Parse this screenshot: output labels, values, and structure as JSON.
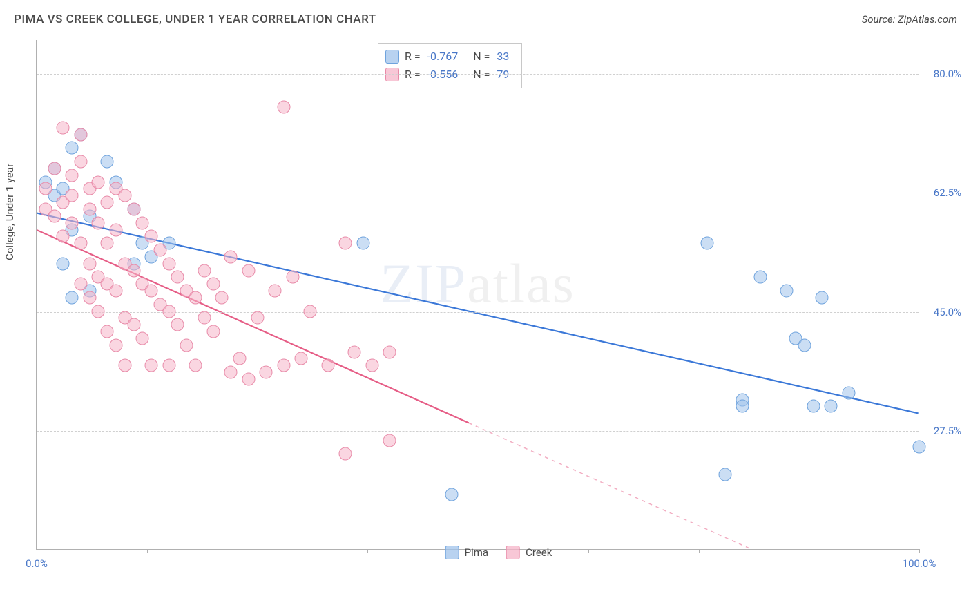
{
  "header": {
    "title": "PIMA VS CREEK COLLEGE, UNDER 1 YEAR CORRELATION CHART",
    "source": "Source: ZipAtlas.com"
  },
  "watermark": {
    "bold": "ZIP",
    "light": "atlas"
  },
  "chart": {
    "type": "scatter",
    "ylabel": "College, Under 1 year",
    "xlim": [
      0,
      100
    ],
    "ylim": [
      10,
      85
    ],
    "xticks_pos": [
      0,
      12.5,
      25,
      37.5,
      50,
      62.5,
      75,
      87.5,
      100
    ],
    "xtick_labels": {
      "0": "0.0%",
      "100": "100.0%"
    },
    "yticks": [
      {
        "v": 27.5,
        "label": "27.5%"
      },
      {
        "v": 45.0,
        "label": "45.0%"
      },
      {
        "v": 62.5,
        "label": "62.5%"
      },
      {
        "v": 80.0,
        "label": "80.0%"
      }
    ],
    "colors": {
      "blue_fill": "rgba(160,195,235,0.55)",
      "blue_stroke": "#6fa3dd",
      "pink_fill": "rgba(245,180,200,0.55)",
      "pink_stroke": "#e88aa8",
      "blue_line": "#3b78d8",
      "pink_line": "#e65d86",
      "grid": "#d0d0d0",
      "axis": "#b0b0b0",
      "tick_text": "#4a78c8",
      "text": "#4a4a4a",
      "bg": "#ffffff"
    },
    "marker_radius": 9.5,
    "line_width": 2.2,
    "series": [
      {
        "name": "Pima",
        "color": "blue",
        "R": "-0.767",
        "N": "33",
        "trend": {
          "x1": 0,
          "y1": 59.5,
          "x2": 100,
          "y2": 30,
          "dash_after_x": 100
        },
        "points": [
          [
            1,
            64
          ],
          [
            2,
            62
          ],
          [
            2,
            66
          ],
          [
            3,
            63
          ],
          [
            4,
            69
          ],
          [
            5,
            71
          ],
          [
            6,
            59
          ],
          [
            8,
            67
          ],
          [
            4,
            57
          ],
          [
            3,
            52
          ],
          [
            6,
            48
          ],
          [
            4,
            47
          ],
          [
            9,
            64
          ],
          [
            11,
            60
          ],
          [
            12,
            55
          ],
          [
            15,
            55
          ],
          [
            11,
            52
          ],
          [
            13,
            53
          ],
          [
            37,
            55
          ],
          [
            47,
            18
          ],
          [
            76,
            55
          ],
          [
            78,
            21
          ],
          [
            80,
            32
          ],
          [
            80,
            31
          ],
          [
            82,
            50
          ],
          [
            85,
            48
          ],
          [
            86,
            41
          ],
          [
            87,
            40
          ],
          [
            88,
            31
          ],
          [
            89,
            47
          ],
          [
            90,
            31
          ],
          [
            92,
            33
          ],
          [
            100,
            25
          ]
        ]
      },
      {
        "name": "Creek",
        "color": "pink",
        "R": "-0.556",
        "N": "79",
        "trend": {
          "x1": 0,
          "y1": 57,
          "x2": 100,
          "y2": -1,
          "dash_after_x": 49
        },
        "points": [
          [
            1,
            63
          ],
          [
            1,
            60
          ],
          [
            2,
            66
          ],
          [
            2,
            59
          ],
          [
            3,
            72
          ],
          [
            3,
            61
          ],
          [
            3,
            56
          ],
          [
            4,
            65
          ],
          [
            4,
            62
          ],
          [
            4,
            58
          ],
          [
            5,
            71
          ],
          [
            5,
            67
          ],
          [
            5,
            55
          ],
          [
            5,
            49
          ],
          [
            6,
            63
          ],
          [
            6,
            60
          ],
          [
            6,
            52
          ],
          [
            6,
            47
          ],
          [
            7,
            64
          ],
          [
            7,
            58
          ],
          [
            7,
            50
          ],
          [
            7,
            45
          ],
          [
            8,
            61
          ],
          [
            8,
            55
          ],
          [
            8,
            49
          ],
          [
            8,
            42
          ],
          [
            9,
            63
          ],
          [
            9,
            57
          ],
          [
            9,
            48
          ],
          [
            9,
            40
          ],
          [
            10,
            62
          ],
          [
            10,
            52
          ],
          [
            10,
            44
          ],
          [
            10,
            37
          ],
          [
            11,
            60
          ],
          [
            11,
            51
          ],
          [
            11,
            43
          ],
          [
            12,
            58
          ],
          [
            12,
            49
          ],
          [
            12,
            41
          ],
          [
            13,
            56
          ],
          [
            13,
            48
          ],
          [
            13,
            37
          ],
          [
            14,
            54
          ],
          [
            14,
            46
          ],
          [
            15,
            52
          ],
          [
            15,
            45
          ],
          [
            15,
            37
          ],
          [
            16,
            50
          ],
          [
            16,
            43
          ],
          [
            17,
            48
          ],
          [
            17,
            40
          ],
          [
            18,
            47
          ],
          [
            18,
            37
          ],
          [
            19,
            51
          ],
          [
            19,
            44
          ],
          [
            20,
            49
          ],
          [
            20,
            42
          ],
          [
            21,
            47
          ],
          [
            22,
            53
          ],
          [
            22,
            36
          ],
          [
            23,
            38
          ],
          [
            24,
            51
          ],
          [
            24,
            35
          ],
          [
            25,
            44
          ],
          [
            26,
            36
          ],
          [
            27,
            48
          ],
          [
            28,
            37
          ],
          [
            28,
            75
          ],
          [
            29,
            50
          ],
          [
            30,
            38
          ],
          [
            31,
            45
          ],
          [
            33,
            37
          ],
          [
            35,
            55
          ],
          [
            36,
            39
          ],
          [
            38,
            37
          ],
          [
            40,
            39
          ],
          [
            35,
            24
          ],
          [
            40,
            26
          ]
        ]
      }
    ],
    "bottom_legend": [
      {
        "swatch": "blue",
        "label": "Pima"
      },
      {
        "swatch": "pink",
        "label": "Creek"
      }
    ]
  }
}
